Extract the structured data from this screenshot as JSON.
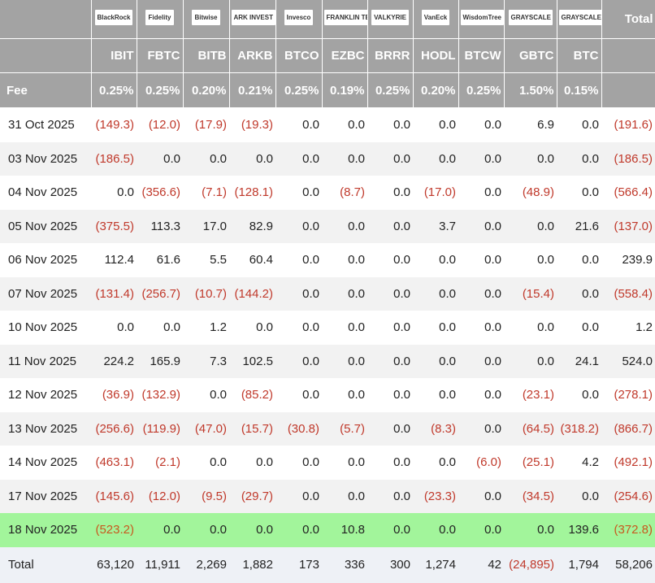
{
  "table": {
    "logos": [
      "BlackRock",
      "Fidelity",
      "Bitwise",
      "ARK INVEST",
      "Invesco",
      "FRANKLIN TEMPLETON",
      "VALKYRIE",
      "VanEck",
      "WisdomTree",
      "GRAYSCALE",
      "GRAYSCALE",
      "Total"
    ],
    "tickers": [
      "IBIT",
      "FBTC",
      "BITB",
      "ARKB",
      "BTCO",
      "EZBC",
      "BRRR",
      "HODL",
      "BTCW",
      "GBTC",
      "BTC"
    ],
    "fee_label": "Fee",
    "fees": [
      "0.25%",
      "0.25%",
      "0.20%",
      "0.21%",
      "0.25%",
      "0.19%",
      "0.25%",
      "0.20%",
      "0.25%",
      "1.50%",
      "0.15%"
    ],
    "rows": [
      [
        "31 Oct 2025",
        "(149.3)",
        "(12.0)",
        "(17.9)",
        "(19.3)",
        "0.0",
        "0.0",
        "0.0",
        "0.0",
        "0.0",
        "6.9",
        "0.0",
        "(191.6)"
      ],
      [
        "03 Nov 2025",
        "(186.5)",
        "0.0",
        "0.0",
        "0.0",
        "0.0",
        "0.0",
        "0.0",
        "0.0",
        "0.0",
        "0.0",
        "0.0",
        "(186.5)"
      ],
      [
        "04 Nov 2025",
        "0.0",
        "(356.6)",
        "(7.1)",
        "(128.1)",
        "0.0",
        "(8.7)",
        "0.0",
        "(17.0)",
        "0.0",
        "(48.9)",
        "0.0",
        "(566.4)"
      ],
      [
        "05 Nov 2025",
        "(375.5)",
        "113.3",
        "17.0",
        "82.9",
        "0.0",
        "0.0",
        "0.0",
        "3.7",
        "0.0",
        "0.0",
        "21.6",
        "(137.0)"
      ],
      [
        "06 Nov 2025",
        "112.4",
        "61.6",
        "5.5",
        "60.4",
        "0.0",
        "0.0",
        "0.0",
        "0.0",
        "0.0",
        "0.0",
        "0.0",
        "239.9"
      ],
      [
        "07 Nov 2025",
        "(131.4)",
        "(256.7)",
        "(10.7)",
        "(144.2)",
        "0.0",
        "0.0",
        "0.0",
        "0.0",
        "0.0",
        "(15.4)",
        "0.0",
        "(558.4)"
      ],
      [
        "10 Nov 2025",
        "0.0",
        "0.0",
        "1.2",
        "0.0",
        "0.0",
        "0.0",
        "0.0",
        "0.0",
        "0.0",
        "0.0",
        "0.0",
        "1.2"
      ],
      [
        "11 Nov 2025",
        "224.2",
        "165.9",
        "7.3",
        "102.5",
        "0.0",
        "0.0",
        "0.0",
        "0.0",
        "0.0",
        "0.0",
        "24.1",
        "524.0"
      ],
      [
        "12 Nov 2025",
        "(36.9)",
        "(132.9)",
        "0.0",
        "(85.2)",
        "0.0",
        "0.0",
        "0.0",
        "0.0",
        "0.0",
        "(23.1)",
        "0.0",
        "(278.1)"
      ],
      [
        "13 Nov 2025",
        "(256.6)",
        "(119.9)",
        "(47.0)",
        "(15.7)",
        "(30.8)",
        "(5.7)",
        "0.0",
        "(8.3)",
        "0.0",
        "(64.5)",
        "(318.2)",
        "(866.7)"
      ],
      [
        "14 Nov 2025",
        "(463.1)",
        "(2.1)",
        "0.0",
        "0.0",
        "0.0",
        "0.0",
        "0.0",
        "0.0",
        "(6.0)",
        "(25.1)",
        "4.2",
        "(492.1)"
      ],
      [
        "17 Nov 2025",
        "(145.6)",
        "(12.0)",
        "(9.5)",
        "(29.7)",
        "0.0",
        "0.0",
        "0.0",
        "(23.3)",
        "0.0",
        "(34.5)",
        "0.0",
        "(254.6)"
      ],
      [
        "18 Nov 2025",
        "(523.2)",
        "0.0",
        "0.0",
        "0.0",
        "0.0",
        "10.8",
        "0.0",
        "0.0",
        "0.0",
        "0.0",
        "139.6",
        "(372.8)"
      ]
    ],
    "total": [
      "Total",
      "63,120",
      "11,911",
      "2,269",
      "1,882",
      "173",
      "336",
      "300",
      "1,274",
      "42",
      "(24,895)",
      "1,794",
      "58,206"
    ]
  }
}
